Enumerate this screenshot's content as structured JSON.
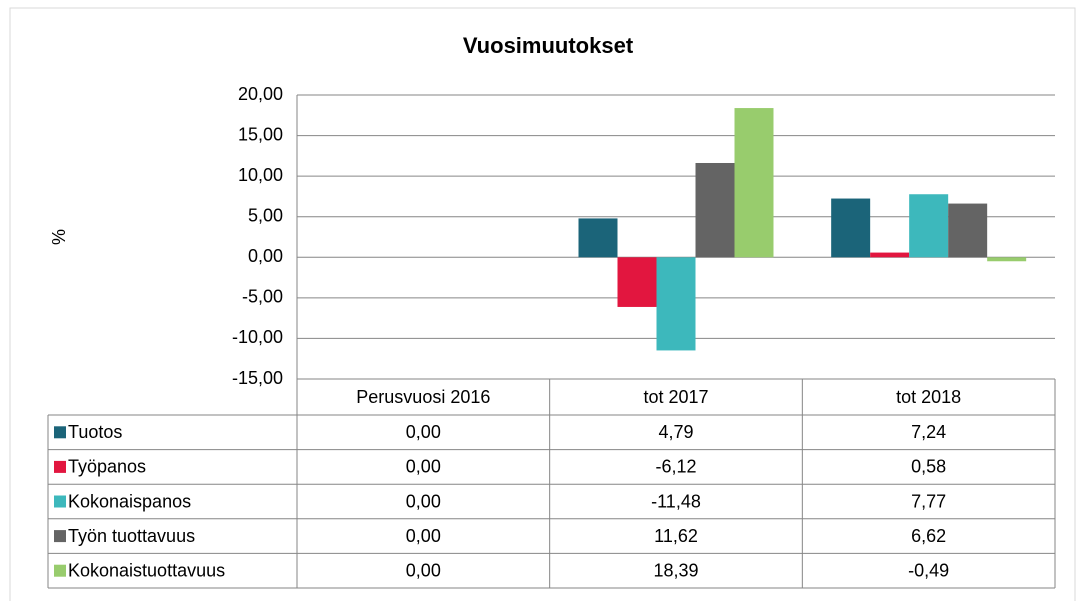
{
  "chart_data": {
    "type": "bar",
    "title": "Vuosimuutokset",
    "y_label": "%",
    "categories": [
      "Perusvuosi 2016",
      "tot 2017",
      "tot 2018"
    ],
    "series": [
      {
        "name": "Tuotos",
        "color": "#1b6479",
        "values": [
          0,
          4.79,
          7.24
        ],
        "value_labels": [
          "0,00",
          "4,79",
          "7,24"
        ]
      },
      {
        "name": "Työpanos",
        "color": "#e2163f",
        "values": [
          0,
          -6.12,
          0.58
        ],
        "value_labels": [
          "0,00",
          "-6,12",
          "0,58"
        ]
      },
      {
        "name": "Kokonaispanos",
        "color": "#3db8bc",
        "values": [
          0,
          -11.48,
          7.77
        ],
        "value_labels": [
          "0,00",
          "-11,48",
          "7,77"
        ]
      },
      {
        "name": "Työn tuottavuus",
        "color": "#646464",
        "values": [
          0,
          11.62,
          6.62
        ],
        "value_labels": [
          "0,00",
          "11,62",
          "6,62"
        ]
      },
      {
        "name": "Kokonaistuottavuus",
        "color": "#98cc6d",
        "values": [
          0,
          18.39,
          -0.49
        ],
        "value_labels": [
          "0,00",
          "18,39",
          "-0,49"
        ]
      }
    ],
    "ylim": [
      -15,
      20
    ],
    "yticks": [
      {
        "value": -15,
        "label": "-15,00"
      },
      {
        "value": -10,
        "label": "-10,00"
      },
      {
        "value": -5,
        "label": "-5,00"
      },
      {
        "value": 0,
        "label": "0,00"
      },
      {
        "value": 5,
        "label": "5,00"
      },
      {
        "value": 10,
        "label": "10,00"
      },
      {
        "value": 15,
        "label": "15,00"
      },
      {
        "value": 20,
        "label": "20,00"
      }
    ],
    "grid": true
  }
}
